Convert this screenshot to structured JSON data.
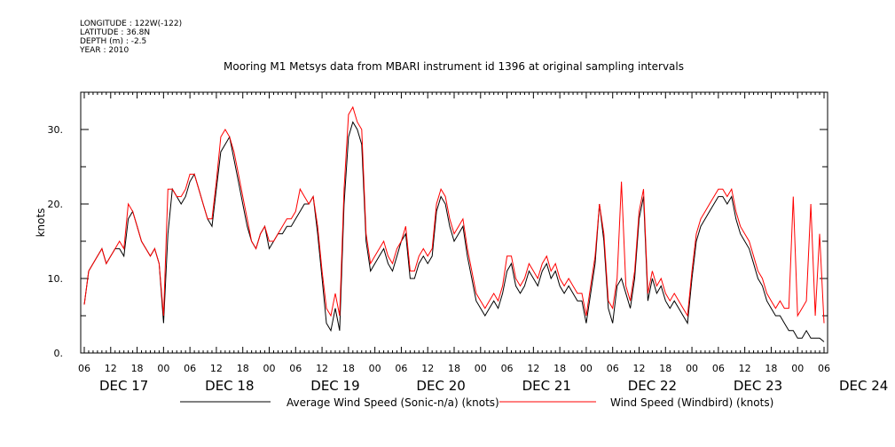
{
  "meta": {
    "longitude": "LONGITUDE : 122W(-122)",
    "latitude": "LATITUDE : 36.8N",
    "depth": "DEPTH (m) : -2.5",
    "year": "YEAR : 2010"
  },
  "title": "Mooring M1 Metsys data from MBARI instrument id 1396 at original sampling intervals",
  "colors": {
    "series1": "#000000",
    "series2": "#ff0000",
    "axis": "#000000"
  },
  "chart_data": {
    "type": "line",
    "xlabel": "",
    "ylabel": "knots",
    "ylim": [
      0,
      35
    ],
    "yticks": [
      0,
      10,
      20,
      30
    ],
    "ytick_labels": [
      "0.",
      "10.",
      "20.",
      "30."
    ],
    "xlim": [
      "DEC 17 06:00",
      "DEC 24 06:00"
    ],
    "hour_ticks": [
      "06",
      "12",
      "18",
      "00",
      "06",
      "12",
      "18",
      "00",
      "06",
      "12",
      "18",
      "00",
      "06",
      "12",
      "18",
      "00",
      "06",
      "12",
      "18",
      "00",
      "06",
      "12",
      "18",
      "00",
      "06",
      "12",
      "18",
      "00",
      "06"
    ],
    "date_labels": [
      "DEC 17",
      "DEC 18",
      "DEC 19",
      "DEC 20",
      "DEC 21",
      "DEC 22",
      "DEC 23",
      "DEC 24"
    ],
    "grid": false,
    "legend_position": "bottom",
    "x_unit": "hours after DEC 17 06:00",
    "series": [
      {
        "name": "Average Wind Speed (Sonic-n/a) (knots)",
        "color": "#000000",
        "x": [
          0,
          1,
          2,
          3,
          4,
          5,
          6,
          7,
          8,
          9,
          10,
          11,
          12,
          13,
          14,
          15,
          16,
          17,
          18,
          19,
          20,
          21,
          22,
          23,
          24,
          25,
          26,
          27,
          28,
          29,
          30,
          31,
          32,
          33,
          34,
          35,
          36,
          37,
          38,
          39,
          40,
          41,
          42,
          43,
          44,
          45,
          46,
          47,
          48,
          49,
          50,
          51,
          52,
          53,
          54,
          55,
          56,
          57,
          58,
          59,
          60,
          61,
          62,
          63,
          64,
          65,
          66,
          67,
          68,
          69,
          70,
          71,
          72,
          73,
          74,
          75,
          76,
          77,
          78,
          79,
          80,
          81,
          82,
          83,
          84,
          85,
          86,
          87,
          88,
          89,
          90,
          91,
          92,
          93,
          94,
          95,
          96,
          97,
          98,
          99,
          100,
          101,
          102,
          103,
          104,
          105,
          106,
          107,
          108,
          109,
          110,
          111,
          112,
          113,
          114,
          115,
          116,
          117,
          118,
          119,
          120,
          121,
          122,
          123,
          124,
          125,
          126,
          127,
          128,
          129,
          130,
          131,
          132,
          133,
          134,
          135,
          136,
          137,
          138,
          139,
          140,
          141,
          142,
          143,
          144,
          145,
          146,
          147,
          148,
          149,
          150,
          151,
          152,
          153,
          154,
          155,
          156,
          157,
          158,
          159,
          160,
          161,
          162,
          163,
          164,
          165,
          166,
          167,
          168
        ],
        "y": [
          6.5,
          11,
          12,
          13,
          14,
          12,
          13,
          14,
          14,
          13,
          18,
          19,
          17,
          15,
          14,
          13,
          14,
          12,
          4,
          16,
          22,
          21,
          20,
          21,
          23,
          24,
          22,
          20,
          18,
          17,
          22,
          27,
          28,
          29,
          26,
          23,
          20,
          17,
          15,
          14,
          16,
          17,
          14,
          15,
          16,
          16,
          17,
          17,
          18,
          19,
          20,
          20,
          21,
          16,
          10,
          4,
          3,
          6,
          3,
          20,
          29,
          31,
          30,
          28,
          15,
          11,
          12,
          13,
          14,
          12,
          11,
          13,
          15,
          16,
          10,
          10,
          12,
          13,
          12,
          13,
          19,
          21,
          20,
          17,
          15,
          16,
          17,
          13,
          10,
          7,
          6,
          5,
          6,
          7,
          6,
          8,
          11,
          12,
          9,
          8,
          9,
          11,
          10,
          9,
          11,
          12,
          10,
          11,
          9,
          8,
          9,
          8,
          7,
          7,
          4,
          8,
          12,
          20,
          15,
          6,
          4,
          9,
          10,
          8,
          6,
          10,
          18,
          21,
          7,
          10,
          8,
          9,
          7,
          6,
          7,
          6,
          5,
          4,
          10,
          15,
          17,
          18,
          19,
          20,
          21,
          21,
          20,
          21,
          18,
          16,
          15,
          14,
          12,
          10,
          9,
          7,
          6,
          5,
          5,
          4,
          3,
          3,
          2,
          2,
          3,
          2,
          2,
          2,
          1.5
        ]
      },
      {
        "name": "Wind Speed (Windbird) (knots)",
        "color": "#ff0000",
        "x": [
          0,
          1,
          2,
          3,
          4,
          5,
          6,
          7,
          8,
          9,
          10,
          11,
          12,
          13,
          14,
          15,
          16,
          17,
          18,
          19,
          20,
          21,
          22,
          23,
          24,
          25,
          26,
          27,
          28,
          29,
          30,
          31,
          32,
          33,
          34,
          35,
          36,
          37,
          38,
          39,
          40,
          41,
          42,
          43,
          44,
          45,
          46,
          47,
          48,
          49,
          50,
          51,
          52,
          53,
          54,
          55,
          56,
          57,
          58,
          59,
          60,
          61,
          62,
          63,
          64,
          65,
          66,
          67,
          68,
          69,
          70,
          71,
          72,
          73,
          74,
          75,
          76,
          77,
          78,
          79,
          80,
          81,
          82,
          83,
          84,
          85,
          86,
          87,
          88,
          89,
          90,
          91,
          92,
          93,
          94,
          95,
          96,
          97,
          98,
          99,
          100,
          101,
          102,
          103,
          104,
          105,
          106,
          107,
          108,
          109,
          110,
          111,
          112,
          113,
          114,
          115,
          116,
          117,
          118,
          119,
          120,
          121,
          122,
          123,
          124,
          125,
          126,
          127,
          128,
          129,
          130,
          131,
          132,
          133,
          134,
          135,
          136,
          137,
          138,
          139,
          140,
          141,
          142,
          143,
          144,
          145,
          146,
          147,
          148,
          149,
          150,
          151,
          152,
          153,
          154,
          155,
          156,
          157,
          158,
          159,
          160,
          161,
          162,
          163,
          164,
          165,
          166,
          167,
          168
        ],
        "y": [
          6.5,
          11,
          12,
          13,
          14,
          12,
          13,
          14,
          15,
          14,
          20,
          19,
          17,
          15,
          14,
          13,
          14,
          12,
          5,
          22,
          22,
          21,
          21,
          22,
          24,
          24,
          22,
          20,
          18,
          18,
          23,
          29,
          30,
          29,
          27,
          24,
          21,
          18,
          15,
          14,
          16,
          17,
          15,
          15,
          16,
          17,
          18,
          18,
          19,
          22,
          21,
          20,
          21,
          17,
          11,
          6,
          5,
          8,
          5,
          22,
          32,
          33,
          31,
          30,
          16,
          12,
          13,
          14,
          15,
          13,
          12,
          14,
          15,
          17,
          11,
          11,
          13,
          14,
          13,
          14,
          20,
          22,
          21,
          18,
          16,
          17,
          18,
          14,
          11,
          8,
          7,
          6,
          7,
          8,
          7,
          9,
          13,
          13,
          10,
          9,
          10,
          12,
          11,
          10,
          12,
          13,
          11,
          12,
          10,
          9,
          10,
          9,
          8,
          8,
          5,
          9,
          13,
          20,
          16,
          7,
          6,
          10,
          23,
          9,
          7,
          11,
          19,
          22,
          8,
          11,
          9,
          10,
          8,
          7,
          8,
          7,
          6,
          5,
          11,
          16,
          18,
          19,
          20,
          21,
          22,
          22,
          21,
          22,
          19,
          17,
          16,
          15,
          13,
          11,
          10,
          8,
          7,
          6,
          7,
          6,
          6,
          21,
          5,
          6,
          7,
          20,
          5,
          16,
          4
        ]
      }
    ]
  }
}
